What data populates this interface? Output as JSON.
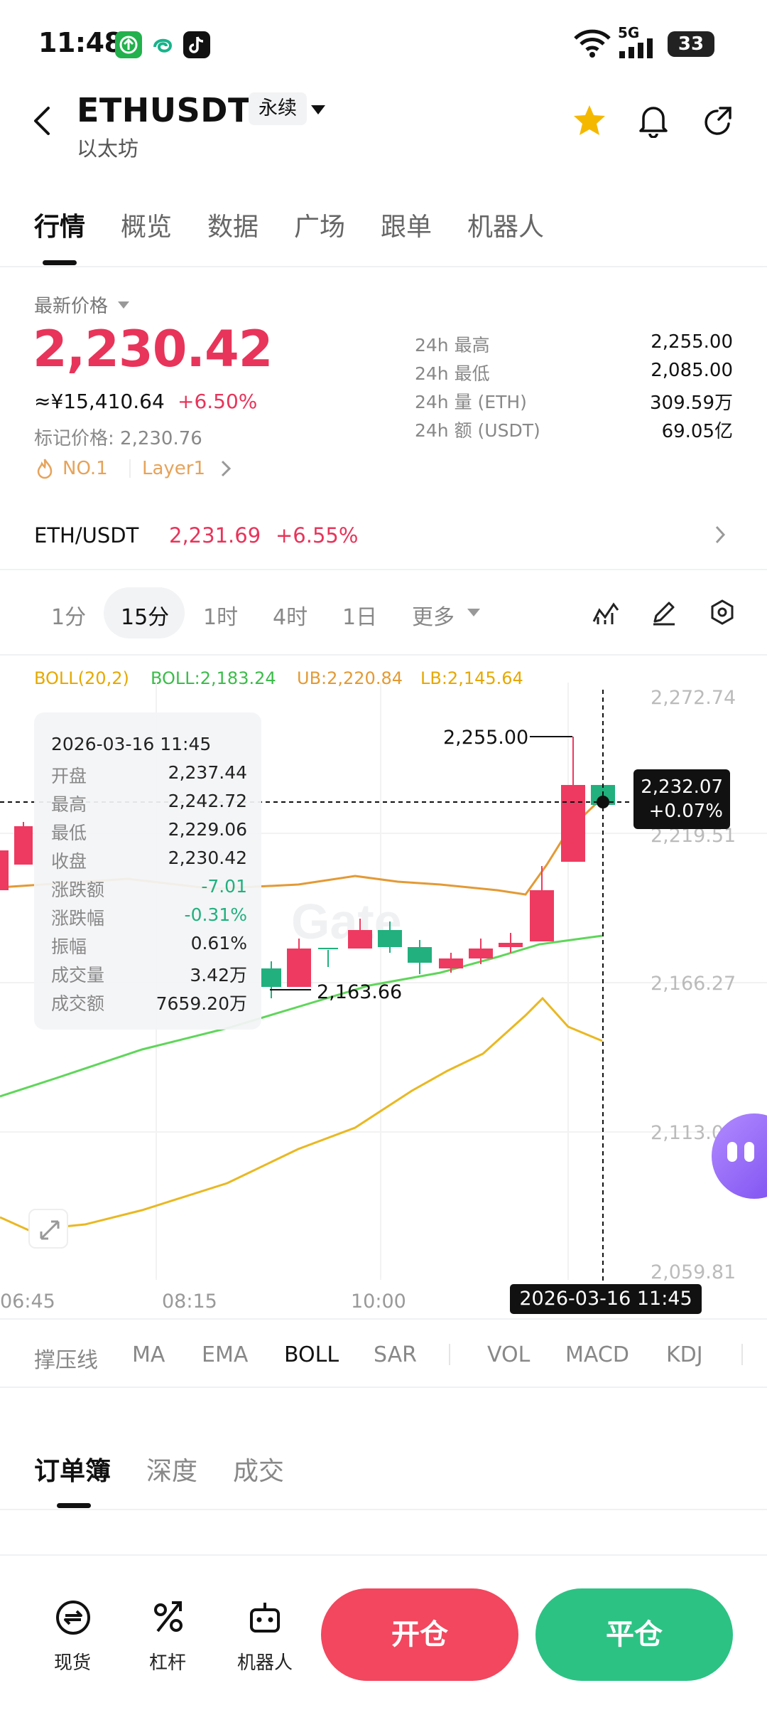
{
  "status_bar": {
    "time": "11:48",
    "signal_label": "5G",
    "battery": "33",
    "app_icons": [
      "app-green-icon",
      "app-swirl-icon",
      "tiktok-icon"
    ]
  },
  "header": {
    "symbol": "ETHUSDT",
    "contract_type": "永续",
    "name": "以太坊"
  },
  "main_tabs": [
    "行情",
    "概览",
    "数据",
    "广场",
    "跟单",
    "机器人"
  ],
  "price": {
    "label": "最新价格",
    "last": "2,230.42",
    "cny": "≈¥15,410.64",
    "change_pct": "+6.50%",
    "mark_price": "标记价格: 2,230.76",
    "tag_rank": "NO.1",
    "tag_sector": "Layer1",
    "stats": [
      {
        "label": "24h  最高",
        "value": "2,255.00"
      },
      {
        "label": "24h  最低",
        "value": "2,085.00"
      },
      {
        "label": "24h  量 (ETH)",
        "value": "309.59万"
      },
      {
        "label": "24h  额 (USDT)",
        "value": "69.05亿"
      }
    ]
  },
  "spot": {
    "pair": "ETH/USDT",
    "price": "2,231.69",
    "change_pct": "+6.55%"
  },
  "intervals": {
    "items": [
      "1分",
      "15分",
      "1时",
      "4时",
      "1日"
    ],
    "active": "15分",
    "more": "更多"
  },
  "chart": {
    "legend": {
      "name": "BOLL(20,2)",
      "mid": "BOLL:2,183.24",
      "ub": "UB:2,220.84",
      "lb": "LB:2,145.64"
    },
    "y_labels": [
      "2,272.74",
      "2,219.51",
      "2,166.27",
      "2,113.0",
      "2,059.81"
    ],
    "x_labels": [
      "06:45",
      "08:15",
      "10:00"
    ],
    "high_label": "2,255.00",
    "low_label": "2,163.66",
    "crosshair_price": "2,232.07",
    "crosshair_pct": "+0.07%",
    "crosshair_time": "2026-03-16 11:45",
    "tooltip": {
      "time": "2026-03-16 11:45",
      "rows": [
        {
          "k": "开盘",
          "v": "2,237.44"
        },
        {
          "k": "最高",
          "v": "2,242.72"
        },
        {
          "k": "最低",
          "v": "2,229.06"
        },
        {
          "k": "收盘",
          "v": "2,230.42"
        },
        {
          "k": "涨跌额",
          "v": "-7.01"
        },
        {
          "k": "涨跌幅",
          "v": "-0.31%"
        },
        {
          "k": "振幅",
          "v": "0.61%"
        },
        {
          "k": "成交量",
          "v": "3.42万"
        },
        {
          "k": "成交额",
          "v": "7659.20万"
        }
      ]
    },
    "colors": {
      "up": "#21b07e",
      "down": "#ee3a60",
      "mid": "#e39a35",
      "ub_lb": "#e9b822",
      "mid_line": "#5fd65a"
    }
  },
  "chart_data": {
    "type": "candlestick",
    "x": [
      "06:45",
      "08:15",
      "10:00",
      "11:45"
    ],
    "ylim": [
      2059.81,
      2272.74
    ],
    "annotations": [
      {
        "label": "2,255.00",
        "value": 2255.0
      },
      {
        "label": "2,163.66",
        "value": 2163.66
      }
    ],
    "last_candle": {
      "time": "2026-03-16 11:45",
      "open": 2237.44,
      "high": 2242.72,
      "low": 2229.06,
      "close": 2230.42
    }
  },
  "indicators": [
    "撑压线",
    "MA",
    "EMA",
    "BOLL",
    "SAR",
    "VOL",
    "MACD",
    "KDJ"
  ],
  "indicators_active": "BOLL",
  "orderbook_tabs": [
    "订单簿",
    "深度",
    "成交"
  ],
  "bottom_bar": {
    "items": [
      "现货",
      "杠杆",
      "机器人"
    ],
    "open": "开仓",
    "close": "平仓"
  },
  "watermark": "Gate"
}
